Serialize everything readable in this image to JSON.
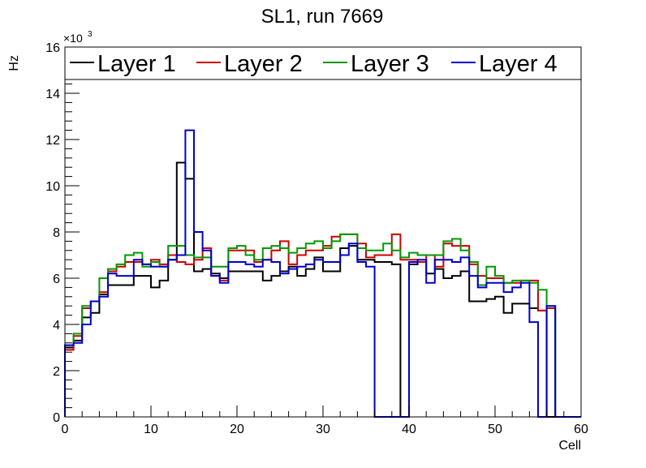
{
  "chart_data": {
    "type": "line",
    "style": "step-histogram",
    "title": "SL1, run 7669",
    "xlabel": "Cell",
    "ylabel": "Hz",
    "y_multiplier": "×10",
    "y_multiplier_exp": "3",
    "xlim": [
      0,
      60
    ],
    "ylim": [
      0,
      16000
    ],
    "x_ticks": [
      0,
      10,
      20,
      30,
      40,
      50,
      60
    ],
    "x_tick_labels": [
      "0",
      "10",
      "20",
      "30",
      "40",
      "50",
      "60"
    ],
    "y_ticks": [
      0,
      2000,
      4000,
      6000,
      8000,
      10000,
      12000,
      14000,
      16000
    ],
    "y_tick_labels": [
      "0",
      "2",
      "4",
      "6",
      "8",
      "10",
      "12",
      "14",
      "16"
    ],
    "bin_width": 1,
    "legend_position": "top",
    "series": [
      {
        "name": "Layer 1",
        "color": "#000000",
        "values": [
          3000,
          3300,
          4300,
          4500,
          5300,
          5700,
          5700,
          5700,
          6100,
          6100,
          5600,
          5900,
          6800,
          11000,
          10300,
          6300,
          6400,
          6200,
          6000,
          6300,
          6300,
          6300,
          6300,
          5900,
          6100,
          6300,
          6500,
          6100,
          6400,
          6900,
          6300,
          6300,
          7300,
          7400,
          6800,
          6800,
          6700,
          6700,
          6600,
          0,
          6600,
          6700,
          6200,
          6400,
          6000,
          6100,
          6300,
          5000,
          5000,
          5100,
          5200,
          4500,
          4900,
          4900,
          4700,
          4600,
          0,
          0,
          0,
          0
        ]
      },
      {
        "name": "Layer 2",
        "color": "#cc0000",
        "values": [
          2900,
          3500,
          4700,
          5000,
          5400,
          6300,
          6500,
          6700,
          6700,
          6600,
          6800,
          6600,
          7000,
          6700,
          6600,
          6800,
          7300,
          6100,
          5900,
          7200,
          7200,
          7200,
          6700,
          6800,
          7200,
          7600,
          6600,
          7000,
          7200,
          7200,
          7400,
          7800,
          7900,
          7900,
          7500,
          6900,
          7000,
          7000,
          7900,
          6800,
          6800,
          6700,
          7000,
          6500,
          7500,
          7400,
          7400,
          6600,
          6100,
          6000,
          6000,
          5800,
          5800,
          5900,
          5900,
          4600,
          4700,
          0,
          0,
          0
        ]
      },
      {
        "name": "Layer 3",
        "color": "#009900",
        "values": [
          3100,
          3600,
          4800,
          5000,
          6000,
          6400,
          6600,
          7000,
          7100,
          6500,
          6700,
          6500,
          7400,
          7400,
          7000,
          6900,
          6900,
          6500,
          6500,
          7300,
          7400,
          7000,
          6800,
          7300,
          7400,
          7300,
          7100,
          7300,
          7500,
          7600,
          7300,
          7600,
          7900,
          7900,
          7300,
          7200,
          7200,
          7500,
          7200,
          6900,
          7100,
          7000,
          7000,
          7000,
          7600,
          7700,
          7200,
          6700,
          5700,
          6500,
          6100,
          5800,
          5900,
          5900,
          5800,
          5500,
          4800,
          0,
          0,
          0
        ]
      },
      {
        "name": "Layer 4",
        "color": "#0000cc",
        "values": [
          3100,
          3200,
          4000,
          5000,
          5200,
          6200,
          6100,
          6100,
          6800,
          6600,
          6500,
          6500,
          6800,
          7000,
          12400,
          8000,
          7200,
          6100,
          5800,
          6700,
          6700,
          6600,
          6500,
          6800,
          6700,
          6200,
          6400,
          6500,
          6600,
          6800,
          6700,
          6700,
          7000,
          7500,
          6700,
          6500,
          0,
          0,
          0,
          0,
          6700,
          6800,
          5800,
          6800,
          6800,
          6700,
          6900,
          6100,
          5600,
          5800,
          5800,
          5400,
          5600,
          5800,
          4100,
          0,
          4800,
          0,
          0,
          0
        ]
      }
    ]
  }
}
